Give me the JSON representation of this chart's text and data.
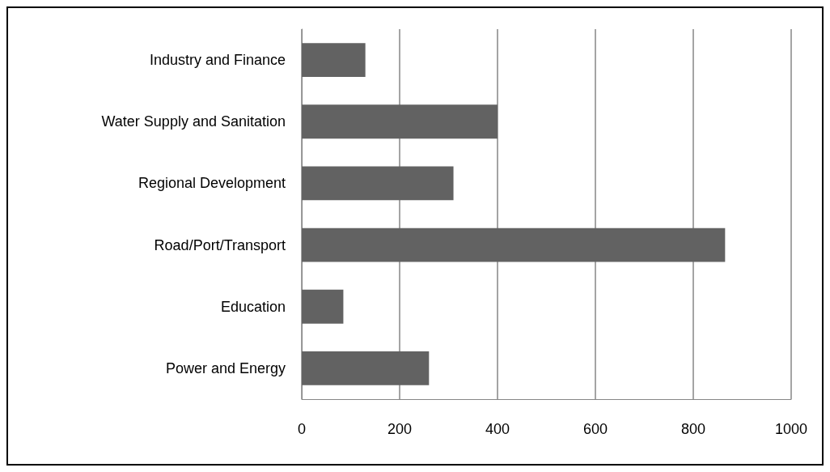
{
  "chart_data": {
    "type": "bar",
    "orientation": "horizontal",
    "categories": [
      "Industry and Finance",
      "Water Supply and Sanitation",
      "Regional Development",
      "Road/Port/Transport",
      "Education",
      "Power and Energy"
    ],
    "values": [
      130,
      400,
      310,
      865,
      85,
      260
    ],
    "color": "#626262",
    "xlim": [
      0,
      1000
    ],
    "xticks": [
      0,
      200,
      400,
      600,
      800,
      1000
    ],
    "grid": "x"
  }
}
